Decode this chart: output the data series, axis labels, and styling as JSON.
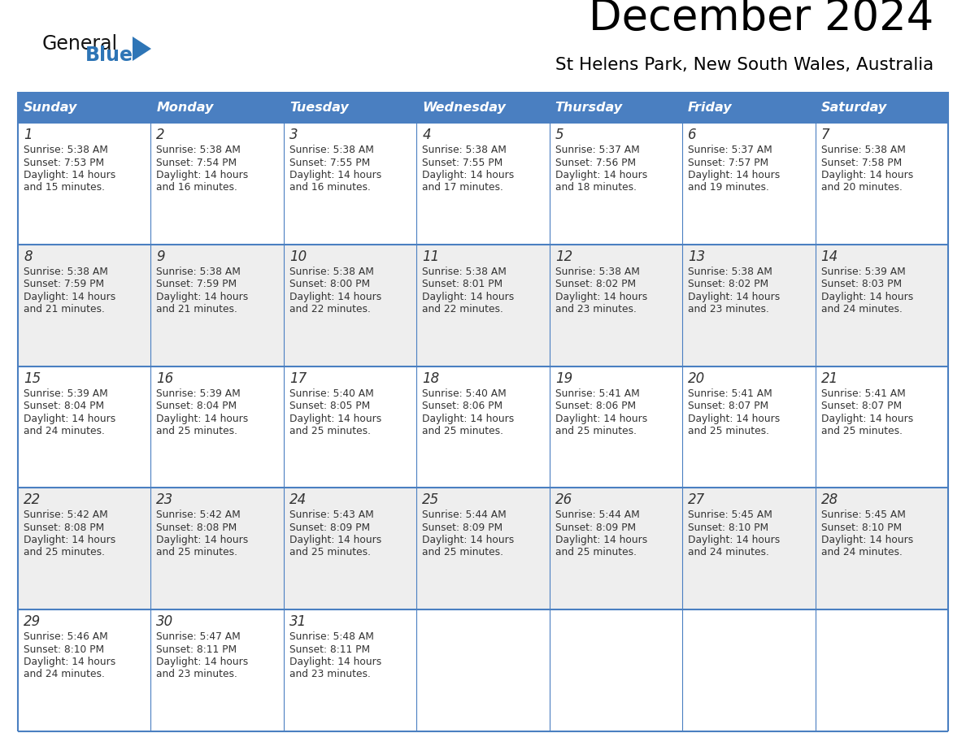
{
  "title": "December 2024",
  "subtitle": "St Helens Park, New South Wales, Australia",
  "days_of_week": [
    "Sunday",
    "Monday",
    "Tuesday",
    "Wednesday",
    "Thursday",
    "Friday",
    "Saturday"
  ],
  "header_bg": "#4a7fc1",
  "header_text_color": "#FFFFFF",
  "row_bg_light": "#FFFFFF",
  "row_bg_dark": "#EEEEEE",
  "cell_border_color": "#4a7fc1",
  "text_color": "#333333",
  "logo_general_color": "#111111",
  "logo_blue_color": "#2E75B6",
  "calendar_data": [
    [
      {
        "day": 1,
        "sunrise": "5:38 AM",
        "sunset": "7:53 PM",
        "daylight": "14 hours\nand 15 minutes."
      },
      {
        "day": 2,
        "sunrise": "5:38 AM",
        "sunset": "7:54 PM",
        "daylight": "14 hours\nand 16 minutes."
      },
      {
        "day": 3,
        "sunrise": "5:38 AM",
        "sunset": "7:55 PM",
        "daylight": "14 hours\nand 16 minutes."
      },
      {
        "day": 4,
        "sunrise": "5:38 AM",
        "sunset": "7:55 PM",
        "daylight": "14 hours\nand 17 minutes."
      },
      {
        "day": 5,
        "sunrise": "5:37 AM",
        "sunset": "7:56 PM",
        "daylight": "14 hours\nand 18 minutes."
      },
      {
        "day": 6,
        "sunrise": "5:37 AM",
        "sunset": "7:57 PM",
        "daylight": "14 hours\nand 19 minutes."
      },
      {
        "day": 7,
        "sunrise": "5:38 AM",
        "sunset": "7:58 PM",
        "daylight": "14 hours\nand 20 minutes."
      }
    ],
    [
      {
        "day": 8,
        "sunrise": "5:38 AM",
        "sunset": "7:59 PM",
        "daylight": "14 hours\nand 21 minutes."
      },
      {
        "day": 9,
        "sunrise": "5:38 AM",
        "sunset": "7:59 PM",
        "daylight": "14 hours\nand 21 minutes."
      },
      {
        "day": 10,
        "sunrise": "5:38 AM",
        "sunset": "8:00 PM",
        "daylight": "14 hours\nand 22 minutes."
      },
      {
        "day": 11,
        "sunrise": "5:38 AM",
        "sunset": "8:01 PM",
        "daylight": "14 hours\nand 22 minutes."
      },
      {
        "day": 12,
        "sunrise": "5:38 AM",
        "sunset": "8:02 PM",
        "daylight": "14 hours\nand 23 minutes."
      },
      {
        "day": 13,
        "sunrise": "5:38 AM",
        "sunset": "8:02 PM",
        "daylight": "14 hours\nand 23 minutes."
      },
      {
        "day": 14,
        "sunrise": "5:39 AM",
        "sunset": "8:03 PM",
        "daylight": "14 hours\nand 24 minutes."
      }
    ],
    [
      {
        "day": 15,
        "sunrise": "5:39 AM",
        "sunset": "8:04 PM",
        "daylight": "14 hours\nand 24 minutes."
      },
      {
        "day": 16,
        "sunrise": "5:39 AM",
        "sunset": "8:04 PM",
        "daylight": "14 hours\nand 25 minutes."
      },
      {
        "day": 17,
        "sunrise": "5:40 AM",
        "sunset": "8:05 PM",
        "daylight": "14 hours\nand 25 minutes."
      },
      {
        "day": 18,
        "sunrise": "5:40 AM",
        "sunset": "8:06 PM",
        "daylight": "14 hours\nand 25 minutes."
      },
      {
        "day": 19,
        "sunrise": "5:41 AM",
        "sunset": "8:06 PM",
        "daylight": "14 hours\nand 25 minutes."
      },
      {
        "day": 20,
        "sunrise": "5:41 AM",
        "sunset": "8:07 PM",
        "daylight": "14 hours\nand 25 minutes."
      },
      {
        "day": 21,
        "sunrise": "5:41 AM",
        "sunset": "8:07 PM",
        "daylight": "14 hours\nand 25 minutes."
      }
    ],
    [
      {
        "day": 22,
        "sunrise": "5:42 AM",
        "sunset": "8:08 PM",
        "daylight": "14 hours\nand 25 minutes."
      },
      {
        "day": 23,
        "sunrise": "5:42 AM",
        "sunset": "8:08 PM",
        "daylight": "14 hours\nand 25 minutes."
      },
      {
        "day": 24,
        "sunrise": "5:43 AM",
        "sunset": "8:09 PM",
        "daylight": "14 hours\nand 25 minutes."
      },
      {
        "day": 25,
        "sunrise": "5:44 AM",
        "sunset": "8:09 PM",
        "daylight": "14 hours\nand 25 minutes."
      },
      {
        "day": 26,
        "sunrise": "5:44 AM",
        "sunset": "8:09 PM",
        "daylight": "14 hours\nand 25 minutes."
      },
      {
        "day": 27,
        "sunrise": "5:45 AM",
        "sunset": "8:10 PM",
        "daylight": "14 hours\nand 24 minutes."
      },
      {
        "day": 28,
        "sunrise": "5:45 AM",
        "sunset": "8:10 PM",
        "daylight": "14 hours\nand 24 minutes."
      }
    ],
    [
      {
        "day": 29,
        "sunrise": "5:46 AM",
        "sunset": "8:10 PM",
        "daylight": "14 hours\nand 24 minutes."
      },
      {
        "day": 30,
        "sunrise": "5:47 AM",
        "sunset": "8:11 PM",
        "daylight": "14 hours\nand 23 minutes."
      },
      {
        "day": 31,
        "sunrise": "5:48 AM",
        "sunset": "8:11 PM",
        "daylight": "14 hours\nand 23 minutes."
      },
      null,
      null,
      null,
      null
    ]
  ]
}
